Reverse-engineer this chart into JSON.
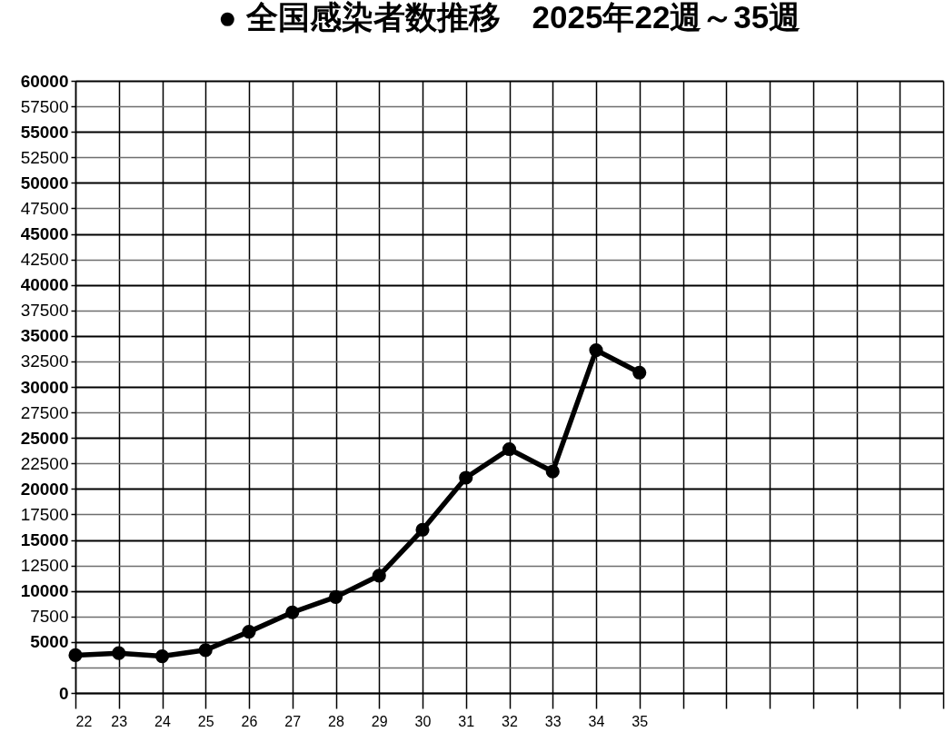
{
  "chart_data": {
    "type": "line",
    "title": "● 全国感染者数推移　2025年22週～35週",
    "x": [
      22,
      23,
      24,
      25,
      26,
      27,
      28,
      29,
      30,
      31,
      32,
      33,
      34,
      35
    ],
    "values": [
      3700,
      3900,
      3600,
      4200,
      6000,
      7900,
      9400,
      11500,
      16000,
      21100,
      23900,
      21700,
      33600,
      31400
    ],
    "color": "#000000",
    "xlim": [
      22,
      42
    ],
    "xticks": [
      22,
      23,
      24,
      25,
      26,
      27,
      28,
      29,
      30,
      31,
      32,
      33,
      34,
      35,
      {
        "value": 36,
        "label": null
      },
      {
        "value": 37,
        "label": null
      },
      {
        "value": 38,
        "label": null
      },
      {
        "value": 39,
        "label": null
      },
      {
        "value": 40,
        "label": null
      },
      {
        "value": 41,
        "label": null
      },
      {
        "value": 42,
        "label": null
      }
    ],
    "ylim": [
      0,
      60000
    ],
    "yticks": [
      0,
      {
        "value": 2500,
        "label": null
      },
      5000,
      7500,
      10000,
      12500,
      15000,
      17500,
      20000,
      22500,
      25000,
      27500,
      30000,
      32500,
      35000,
      37500,
      40000,
      42500,
      45000,
      47500,
      50000,
      52500,
      55000,
      57500,
      60000
    ],
    "grid": true,
    "marker": "circle",
    "line_style": "solid"
  }
}
